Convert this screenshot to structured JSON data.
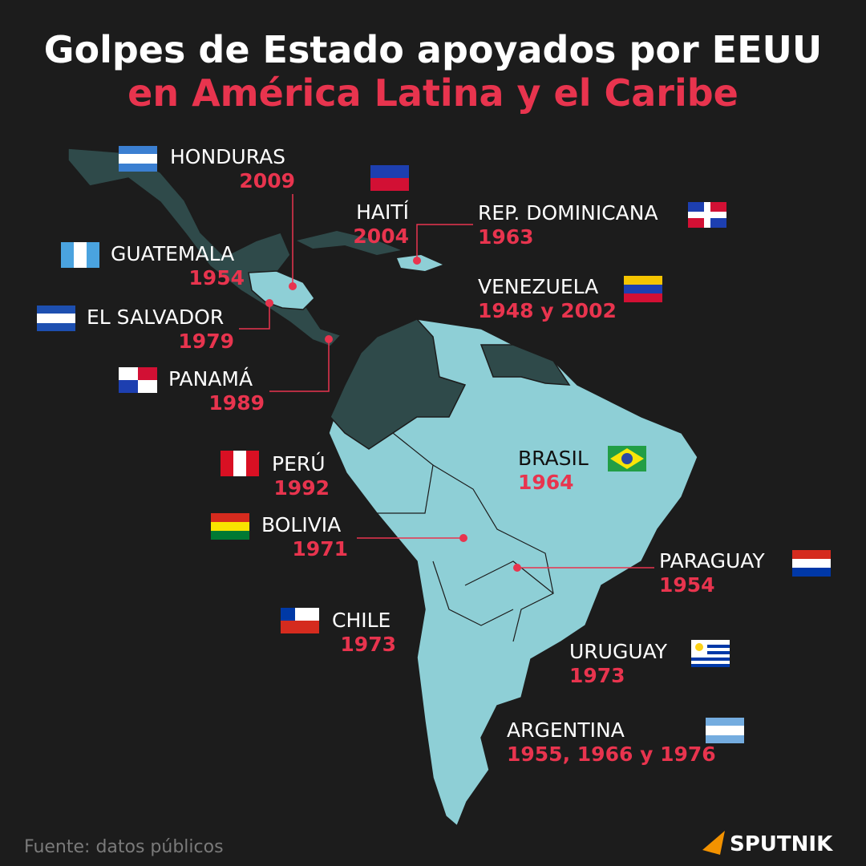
{
  "header": {
    "title": "Golpes de Estado apoyados por EEUU",
    "subtitle": "en América Latina y el Caribe"
  },
  "countries": [
    {
      "name": "HONDURAS",
      "years": "2009"
    },
    {
      "name": "HAITÍ",
      "years": "2004"
    },
    {
      "name": "REP. DOMINICANA",
      "years": "1963"
    },
    {
      "name": "GUATEMALA",
      "years": "1954"
    },
    {
      "name": "VENEZUELA",
      "years": "1948 y 2002"
    },
    {
      "name": "EL SALVADOR",
      "years": "1979"
    },
    {
      "name": "PANAMÁ",
      "years": "1989"
    },
    {
      "name": "PERÚ",
      "years": "1992"
    },
    {
      "name": "BRASIL",
      "years": "1964"
    },
    {
      "name": "BOLIVIA",
      "years": "1971"
    },
    {
      "name": "PARAGUAY",
      "years": "1954"
    },
    {
      "name": "CHILE",
      "years": "1973"
    },
    {
      "name": "URUGUAY",
      "years": "1973"
    },
    {
      "name": "ARGENTINA",
      "years": "1955, 1966 y 1976"
    }
  ],
  "footer": {
    "source": "Fuente: datos públicos",
    "logo": "SPUTNIK"
  }
}
